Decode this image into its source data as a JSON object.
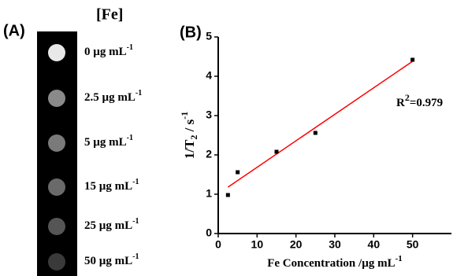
{
  "panel_a": {
    "label": "(A)",
    "title": "[Fe]",
    "samples": [
      {
        "label": "0 µg mL",
        "sup": "-1",
        "color": "#e8e8e8"
      },
      {
        "label": "2.5 µg mL",
        "sup": "-1",
        "color": "#8a8a8a"
      },
      {
        "label": "5 µg mL",
        "sup": "-1",
        "color": "#7a7a7a"
      },
      {
        "label": "15 µg mL",
        "sup": "-1",
        "color": "#6a6a6a"
      },
      {
        "label": "25 µg mL",
        "sup": "-1",
        "color": "#555555"
      },
      {
        "label": "50 µg mL",
        "sup": "-1",
        "color": "#3a3a3a"
      }
    ]
  },
  "chart_data": {
    "type": "scatter",
    "panel_label": "(B)",
    "x_label": "Fe Concentration /µg mL",
    "x_label_sup": "-1",
    "y_label": "1/T",
    "y_label_sub": "2",
    "y_label_unit": " / s",
    "y_label_sup": "-1",
    "annotation": "R",
    "annotation_sup": "2",
    "annotation_rest": "=0.979",
    "x": [
      2.5,
      5,
      15,
      25,
      50
    ],
    "values": [
      0.98,
      1.56,
      2.08,
      2.56,
      4.42
    ],
    "color": "#000000",
    "fit": {
      "x": [
        2.5,
        50
      ],
      "values": [
        1.18,
        4.38
      ],
      "color": "#ff0000"
    },
    "xlim": [
      0,
      60
    ],
    "xticks": [
      0,
      10,
      20,
      30,
      40,
      50
    ],
    "ylim": [
      0,
      5
    ],
    "yticks": [
      0,
      1,
      2,
      3,
      4,
      5
    ]
  }
}
